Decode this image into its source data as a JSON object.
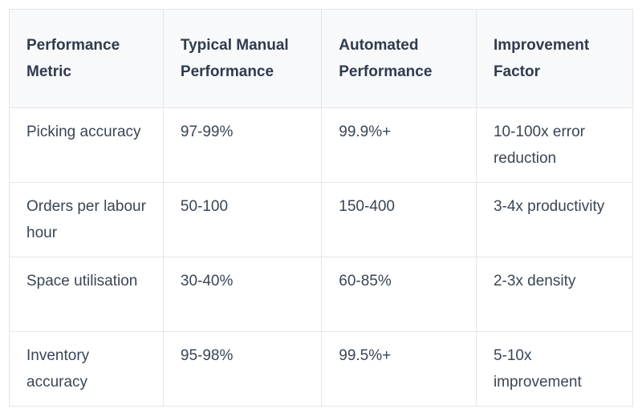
{
  "colors": {
    "header_background": "#f8f9fa",
    "body_background": "#ffffff",
    "border": "#e4e6ea",
    "header_text": "#2f3b4f",
    "body_text": "#3a4557"
  },
  "table": {
    "columns": [
      {
        "label": "Performance Metric"
      },
      {
        "label": "Typical Manual Performance"
      },
      {
        "label": "Automated Performance"
      },
      {
        "label": "Improvement Factor"
      }
    ],
    "rows": [
      {
        "metric": "Picking accuracy",
        "manual": "97-99%",
        "automated": "99.9%+",
        "improvement": "10-100x error reduction"
      },
      {
        "metric": "Orders per labour hour",
        "manual": "50-100",
        "automated": "150-400",
        "improvement": "3-4x productivity"
      },
      {
        "metric": "Space utilisation",
        "manual": "30-40%",
        "automated": "60-85%",
        "improvement": "2-3x density"
      },
      {
        "metric": "Inventory accuracy",
        "manual": "95-98%",
        "automated": "99.5%+",
        "improvement": "5-10x improvement"
      }
    ]
  }
}
